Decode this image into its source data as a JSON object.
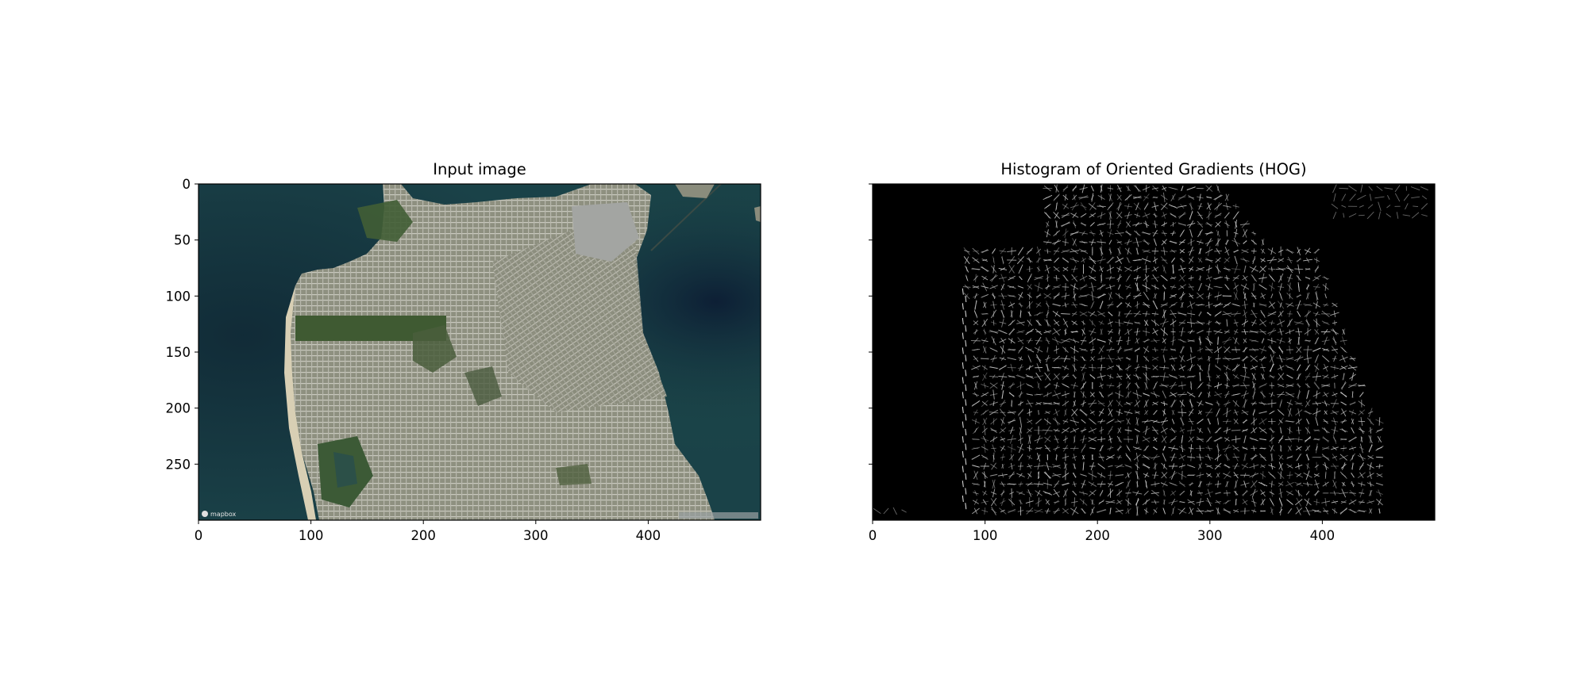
{
  "chart_data": [
    {
      "type": "image",
      "title": "Input image",
      "xlim": [
        0,
        500
      ],
      "ylim": [
        300,
        0
      ],
      "xticks": [
        0,
        100,
        200,
        300,
        400
      ],
      "yticks": [
        0,
        50,
        100,
        150,
        200,
        250
      ],
      "xtick_labels": [
        "0",
        "100",
        "200",
        "300",
        "400"
      ],
      "ytick_labels": [
        "0",
        "50",
        "100",
        "150",
        "200",
        "250"
      ],
      "content": "aerial satellite image of San Francisco peninsula",
      "watermark": "mapbox",
      "colors": {
        "water": "#1d4f4a",
        "deep_water": "#132c38",
        "land": "#9a9a8a",
        "park": "#3f5a32",
        "beach": "#d8cfb4"
      }
    },
    {
      "type": "image",
      "title": "Histogram of Oriented Gradients (HOG)",
      "xlim": [
        0,
        500
      ],
      "ylim": [
        300,
        0
      ],
      "xticks": [
        0,
        100,
        200,
        300,
        400
      ],
      "yticks": [
        0,
        50,
        100,
        150,
        200,
        250
      ],
      "xtick_labels": [
        "0",
        "100",
        "200",
        "300",
        "400"
      ],
      "ytick_labels": [],
      "content": "HOG visualization of the input image",
      "colors": {
        "background": "#000000",
        "gradient": "#cfcfcf"
      }
    }
  ]
}
